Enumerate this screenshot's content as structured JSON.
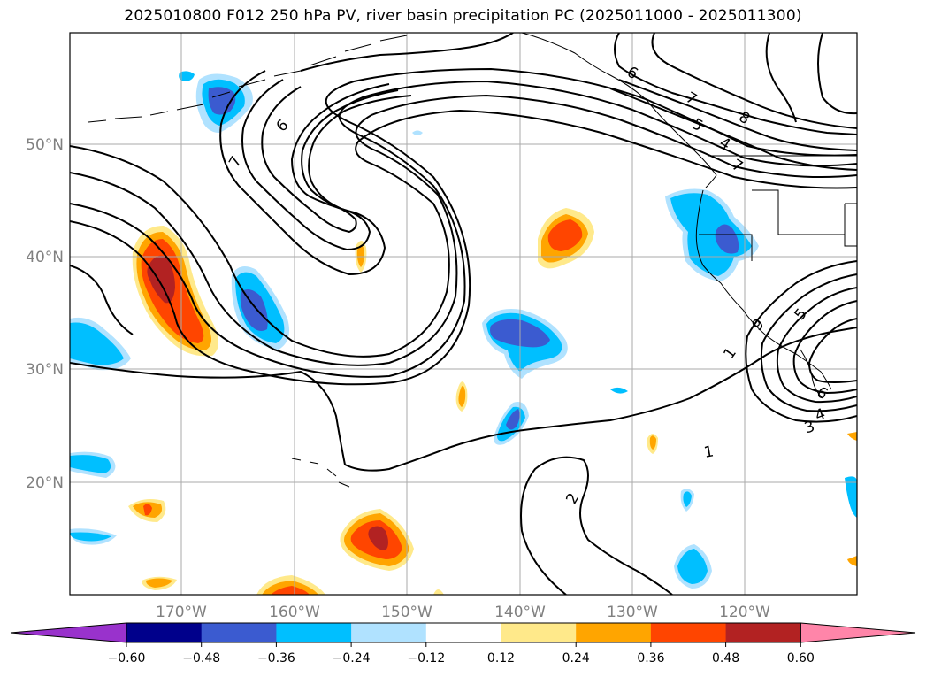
{
  "title": "2025010800 F012 250 hPa PV, river basin precipitation PC (2025011000 - 2025011300)",
  "axes": {
    "lat_labels": [
      "50°N",
      "40°N",
      "30°N",
      "20°N"
    ],
    "lon_labels": [
      "170°W",
      "160°W",
      "150°W",
      "140°W",
      "130°W",
      "120°W"
    ]
  },
  "colorbar": {
    "ticks": [
      "−0.60",
      "−0.48",
      "−0.36",
      "−0.24",
      "−0.12",
      "0.12",
      "0.24",
      "0.36",
      "0.48",
      "0.60"
    ],
    "colors": {
      "extend_min": "#9932cc",
      "bins": [
        "#00008b",
        "#3b5bd0",
        "#00bfff",
        "#b0e2ff",
        "#ffffff",
        "#ffe98a",
        "#ffa500",
        "#ff4500",
        "#b22222"
      ],
      "extend_max": "#ff85a9"
    }
  },
  "contour_labels": [
    "6",
    "7",
    "6",
    "7",
    "5",
    "8",
    "4",
    "7",
    "5",
    "9",
    "1",
    "6",
    "4",
    "3",
    "1",
    "2"
  ],
  "colors": {
    "grid": "#aaaaaa",
    "coast": "#000000",
    "contour": "#000000",
    "tick_text": "#808080"
  }
}
